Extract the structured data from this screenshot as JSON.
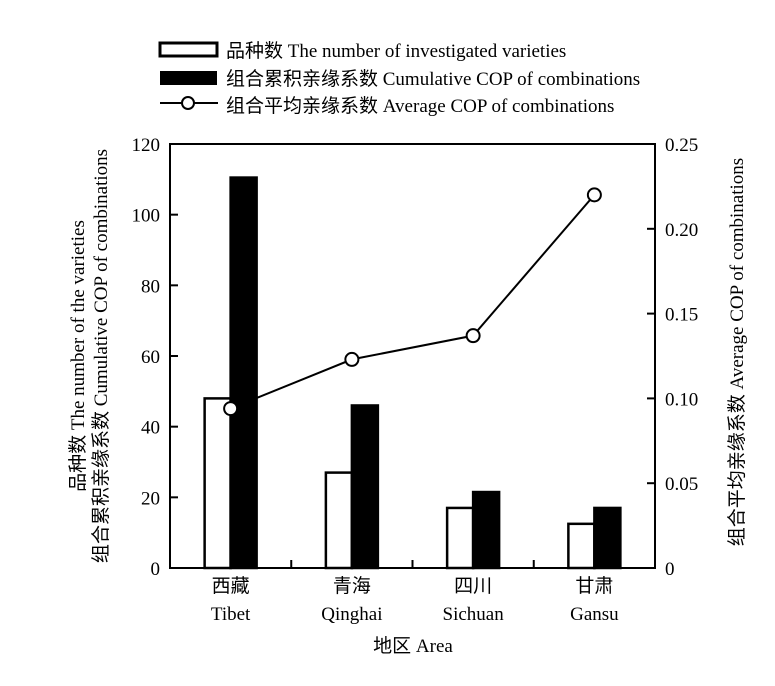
{
  "chart_data": {
    "type": "bar",
    "categories": [
      {
        "cn": "西藏",
        "en": "Tibet"
      },
      {
        "cn": "青海",
        "en": "Qinghai"
      },
      {
        "cn": "四川",
        "en": "Sichuan"
      },
      {
        "cn": "甘肃",
        "en": "Gansu"
      }
    ],
    "series": [
      {
        "name": "品种数 The number of investigated varieties",
        "kind": "bar",
        "axis": "left",
        "fill": "#ffffff",
        "values": [
          48,
          27,
          17,
          12.5
        ]
      },
      {
        "name": "组合累积亲缘系数 Cumulative COP of combinations",
        "kind": "bar",
        "axis": "left",
        "fill": "#000000",
        "values": [
          110.5,
          46,
          21.5,
          17
        ]
      },
      {
        "name": "组合平均亲缘系数 Average COP of combinations",
        "kind": "line",
        "marker": "open-circle",
        "axis": "right",
        "values": [
          0.094,
          0.123,
          0.137,
          0.22
        ]
      }
    ],
    "xlabel": "地区 Area",
    "ylabel_left": [
      "品种数 The number of the varieties",
      "组合累积亲缘系数 Cumulative COP of combinations"
    ],
    "ylabel_right": "组合平均亲缘系数 Average COP of combinations",
    "ylim_left": [
      0,
      120
    ],
    "yticks_left": [
      "0",
      "20",
      "40",
      "60",
      "80",
      "100",
      "120"
    ],
    "ylim_right": [
      0,
      0.25
    ],
    "yticks_right": [
      "0",
      "0.05",
      "0.10",
      "0.15",
      "0.20",
      "0.25"
    ],
    "grid": false,
    "legend_position": "top"
  }
}
